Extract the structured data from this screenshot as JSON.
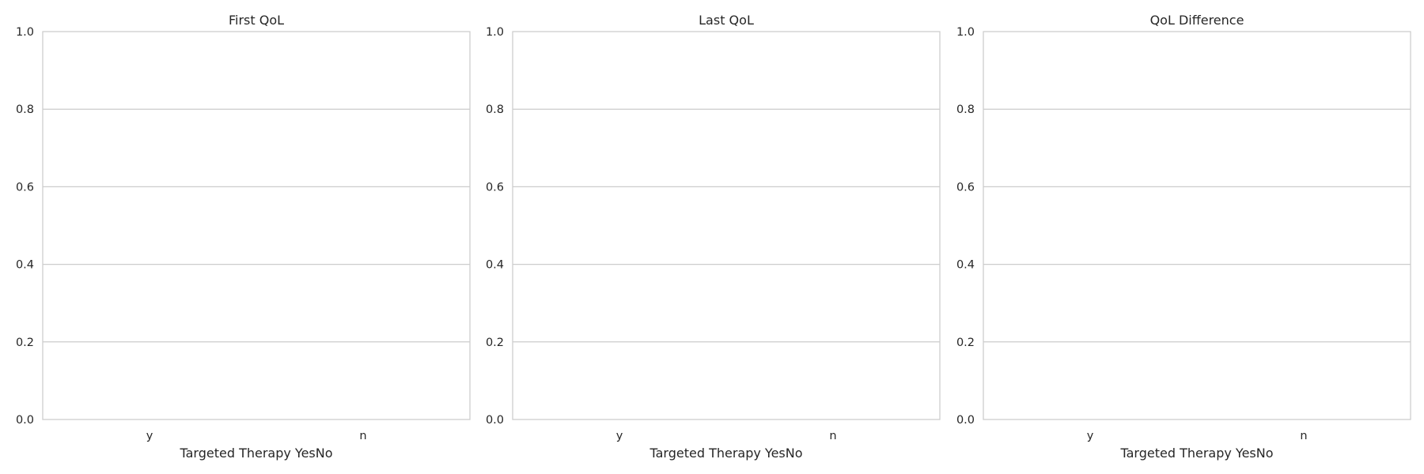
{
  "chart_data": [
    {
      "type": "bar",
      "title": "First QoL",
      "xlabel": "Targeted Therapy YesNo",
      "ylabel": "",
      "categories": [
        "y",
        "n"
      ],
      "series": [],
      "ylim": [
        0,
        1
      ],
      "yticks": [
        "0.0",
        "0.2",
        "0.4",
        "0.6",
        "0.8",
        "1.0"
      ],
      "grid": "y-major",
      "legend": "none"
    },
    {
      "type": "bar",
      "title": "Last QoL",
      "xlabel": "Targeted Therapy YesNo",
      "ylabel": "",
      "categories": [
        "y",
        "n"
      ],
      "series": [],
      "ylim": [
        0,
        1
      ],
      "yticks": [
        "0.0",
        "0.2",
        "0.4",
        "0.6",
        "0.8",
        "1.0"
      ],
      "grid": "y-major",
      "legend": "none"
    },
    {
      "type": "bar",
      "title": "QoL Difference",
      "xlabel": "Targeted Therapy YesNo",
      "ylabel": "",
      "categories": [
        "y",
        "n"
      ],
      "series": [],
      "ylim": [
        0,
        1
      ],
      "yticks": [
        "0.0",
        "0.2",
        "0.4",
        "0.6",
        "0.8",
        "1.0"
      ],
      "grid": "y-major",
      "legend": "none"
    }
  ],
  "colors": {
    "grid": "#cccccc",
    "frame": "#cccccc",
    "text": "#262626",
    "background": "#ffffff"
  }
}
